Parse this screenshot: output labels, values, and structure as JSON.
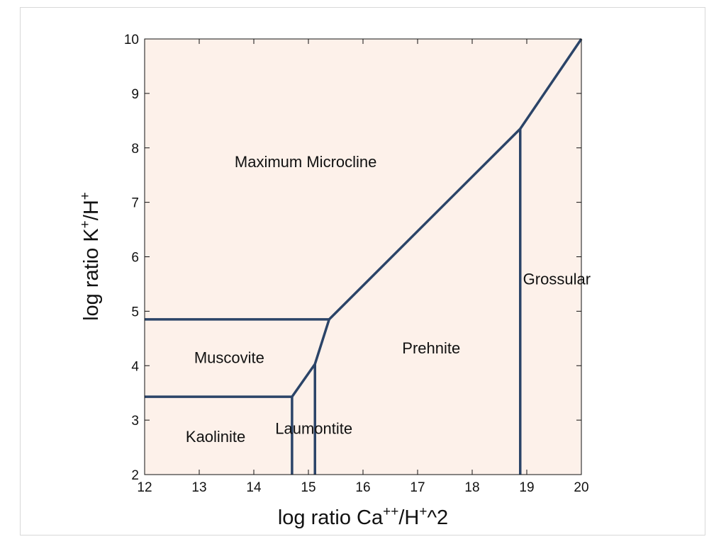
{
  "chart_data": {
    "type": "line",
    "title": "",
    "xlabel": "log ratio Ca",
    "xlabel_sup1": "++",
    "xlabel_mid": "/H",
    "xlabel_sup2": "+",
    "xlabel_end": "^2",
    "ylabel": "log ratio K",
    "ylabel_sup1": "+",
    "ylabel_mid": "/H",
    "ylabel_sup2": "+",
    "xlim": [
      12,
      20
    ],
    "ylim": [
      2,
      10
    ],
    "xticks": [
      "12",
      "13",
      "14",
      "15",
      "16",
      "17",
      "18",
      "19",
      "20"
    ],
    "yticks": [
      "2",
      "3",
      "4",
      "5",
      "6",
      "7",
      "8",
      "9",
      "10"
    ],
    "grid": false,
    "background_color": "#fdf1ea",
    "line_color": "#2b4468",
    "boundaries": [
      {
        "name": "muscovite-microcline",
        "x": [
          12,
          15.38
        ],
        "y": [
          4.85,
          4.85
        ]
      },
      {
        "name": "kaolinite-muscovite",
        "x": [
          12,
          14.7
        ],
        "y": [
          3.43,
          3.43
        ]
      },
      {
        "name": "kaolinite-laumontite",
        "x": [
          14.7,
          14.7
        ],
        "y": [
          2,
          3.43
        ]
      },
      {
        "name": "laumontite-prehnite",
        "x": [
          15.12,
          15.12
        ],
        "y": [
          2,
          4.03
        ]
      },
      {
        "name": "prehnite-grossular",
        "x": [
          18.88,
          18.88
        ],
        "y": [
          2,
          8.35
        ]
      },
      {
        "name": "diagonal-boundary",
        "x": [
          14.7,
          15.12,
          15.38,
          18.88,
          20
        ],
        "y": [
          3.43,
          4.03,
          4.85,
          8.35,
          10
        ]
      }
    ],
    "region_labels": [
      {
        "text": "Maximum Microcline",
        "x": 14.95,
        "y": 7.75
      },
      {
        "text": "Grossular",
        "x": 19.55,
        "y": 5.6
      },
      {
        "text": "Prehnite",
        "x": 17.25,
        "y": 4.33
      },
      {
        "text": "Muscovite",
        "x": 13.55,
        "y": 4.15
      },
      {
        "text": "Laumontite",
        "x": 15.1,
        "y": 2.85
      },
      {
        "text": "Kaolinite",
        "x": 13.3,
        "y": 2.7
      }
    ]
  }
}
